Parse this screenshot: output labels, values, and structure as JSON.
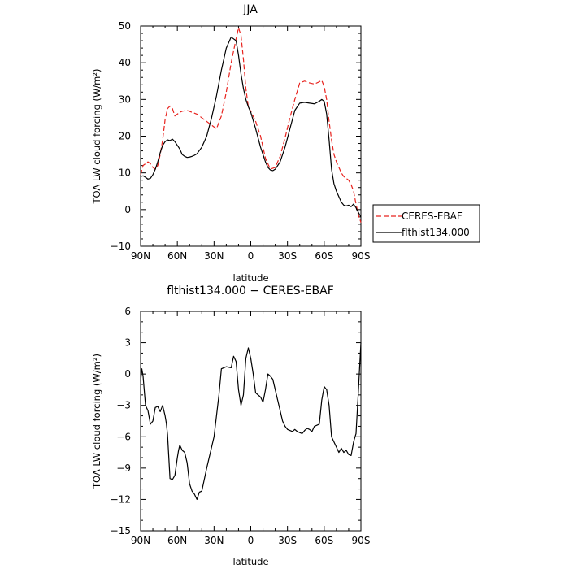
{
  "colors": {
    "ceres": "#e8231e",
    "model": "#000000",
    "axis": "#000000"
  },
  "chart_data": [
    {
      "type": "line",
      "title": "JJA",
      "xlabel": "latitude",
      "ylabel": "TOA LW cloud forcing (W/m²)",
      "xlim": [
        90,
        -90
      ],
      "ylim": [
        -10,
        50
      ],
      "grid": false,
      "legend_position": "right-outside",
      "xticks": [
        {
          "value": 90,
          "label": "90N"
        },
        {
          "value": 60,
          "label": "60N"
        },
        {
          "value": 30,
          "label": "30N"
        },
        {
          "value": 0,
          "label": "0"
        },
        {
          "value": -30,
          "label": "30S"
        },
        {
          "value": -60,
          "label": "60S"
        },
        {
          "value": -90,
          "label": "90S"
        }
      ],
      "yticks": [
        {
          "value": -10,
          "label": "−10"
        },
        {
          "value": 0,
          "label": "0"
        },
        {
          "value": 10,
          "label": "10"
        },
        {
          "value": 20,
          "label": "20"
        },
        {
          "value": 30,
          "label": "30"
        },
        {
          "value": 40,
          "label": "40"
        },
        {
          "value": 50,
          "label": "50"
        }
      ],
      "series": [
        {
          "name": "CERES-EBAF",
          "style": "dashed",
          "x": [
            90,
            88,
            86,
            84,
            82,
            80,
            78,
            76,
            74,
            72,
            70,
            68,
            66,
            64,
            62,
            60,
            58,
            56,
            52,
            48,
            44,
            40,
            36,
            32,
            28,
            24,
            20,
            16,
            12,
            10,
            8,
            6,
            4,
            2,
            0,
            -4,
            -8,
            -12,
            -16,
            -20,
            -24,
            -28,
            -32,
            -36,
            -40,
            -44,
            -48,
            -52,
            -56,
            -58,
            -60,
            -62,
            -64,
            -66,
            -68,
            -70,
            -72,
            -74,
            -76,
            -78,
            -80,
            -82,
            -84,
            -86,
            -88,
            -90
          ],
          "y": [
            9.5,
            12,
            12.5,
            13,
            12.5,
            11.5,
            11,
            12,
            15,
            19,
            24.5,
            27.5,
            28.2,
            27.5,
            25.5,
            26,
            26.5,
            26.8,
            27,
            26.5,
            26,
            25,
            24,
            23,
            22,
            25.5,
            32,
            40,
            46.5,
            49.5,
            47.5,
            41,
            33,
            28,
            26.8,
            24,
            20,
            14,
            11,
            11.5,
            14.5,
            19.5,
            25,
            30,
            34.5,
            35,
            34.5,
            34.2,
            34.8,
            35.2,
            33.5,
            30,
            24,
            19,
            15,
            13,
            11.5,
            10,
            9,
            8.5,
            8,
            6.8,
            5,
            1.5,
            -1.5,
            -3.5
          ]
        },
        {
          "name": "flthist134.000",
          "style": "solid",
          "x": [
            90,
            88,
            86,
            84,
            82,
            80,
            78,
            76,
            74,
            72,
            70,
            68,
            66,
            64,
            62,
            60,
            58,
            56,
            54,
            52,
            50,
            48,
            46,
            44,
            40,
            36,
            32,
            28,
            24,
            20,
            16,
            12,
            10,
            8,
            6,
            4,
            2,
            0,
            -4,
            -8,
            -12,
            -14,
            -16,
            -18,
            -20,
            -24,
            -28,
            -32,
            -36,
            -40,
            -44,
            -48,
            -52,
            -56,
            -58,
            -60,
            -62,
            -64,
            -66,
            -68,
            -70,
            -72,
            -74,
            -76,
            -78,
            -80,
            -82,
            -84,
            -86,
            -88,
            -90
          ],
          "y": [
            9,
            9.2,
            8.8,
            8.3,
            8.5,
            9.5,
            11,
            13,
            15.5,
            17.5,
            18.5,
            19,
            18.8,
            19.2,
            18.5,
            17.5,
            16.5,
            15,
            14.5,
            14.2,
            14.3,
            14.5,
            14.8,
            15.2,
            17,
            20,
            25,
            31,
            38,
            44,
            47,
            46,
            42,
            37,
            33,
            30,
            28,
            26.5,
            22,
            17,
            13,
            11.5,
            10.8,
            10.6,
            11,
            13,
            17,
            22,
            27,
            29,
            29.2,
            29,
            28.8,
            29.5,
            30,
            29.5,
            26,
            19,
            11,
            7,
            5,
            3.5,
            2,
            1.2,
            1,
            1.2,
            0.8,
            1.5,
            0.5,
            -0.8,
            -2
          ]
        }
      ]
    },
    {
      "type": "line",
      "title": "flthist134.000 − CERES-EBAF",
      "xlabel": "latitude",
      "ylabel": "TOA LW cloud forcing (W/m²)",
      "xlim": [
        90,
        -90
      ],
      "ylim": [
        -15,
        6
      ],
      "grid": false,
      "xticks": [
        {
          "value": 90,
          "label": "90N"
        },
        {
          "value": 60,
          "label": "60N"
        },
        {
          "value": 30,
          "label": "30N"
        },
        {
          "value": 0,
          "label": "0"
        },
        {
          "value": -30,
          "label": "30S"
        },
        {
          "value": -60,
          "label": "60S"
        },
        {
          "value": -90,
          "label": "90S"
        }
      ],
      "yticks": [
        {
          "value": -15,
          "label": "−15"
        },
        {
          "value": -12,
          "label": "−12"
        },
        {
          "value": -9,
          "label": "−9"
        },
        {
          "value": -6,
          "label": "−6"
        },
        {
          "value": -3,
          "label": "−3"
        },
        {
          "value": 0,
          "label": "0"
        },
        {
          "value": 3,
          "label": "3"
        },
        {
          "value": 6,
          "label": "6"
        }
      ],
      "series": [
        {
          "name": "",
          "style": "solid",
          "x": [
            90,
            89,
            88,
            86,
            84,
            82,
            80,
            78,
            76,
            74,
            72,
            70,
            69,
            68,
            66,
            64,
            62,
            60,
            59,
            58,
            56,
            54,
            52,
            50,
            48,
            46,
            44,
            42,
            40,
            36,
            32,
            30,
            28,
            26,
            24,
            20,
            16,
            14,
            12,
            10,
            8,
            6,
            4,
            2,
            0,
            -2,
            -4,
            -6,
            -8,
            -10,
            -12,
            -14,
            -16,
            -18,
            -20,
            -22,
            -24,
            -26,
            -28,
            -30,
            -32,
            -34,
            -36,
            -38,
            -40,
            -42,
            -44,
            -46,
            -48,
            -50,
            -52,
            -54,
            -56,
            -58,
            -60,
            -62,
            -64,
            -66,
            -68,
            -70,
            -72,
            -74,
            -76,
            -78,
            -80,
            -82,
            -84,
            -86,
            -88,
            -90
          ],
          "y": [
            -0.7,
            0.5,
            -0.2,
            -3,
            -3.5,
            -4.8,
            -4.5,
            -3.2,
            -3.1,
            -3.6,
            -3,
            -4,
            -4.7,
            -5.8,
            -10,
            -10.1,
            -9.7,
            -8,
            -7.3,
            -6.8,
            -7.3,
            -7.5,
            -8.5,
            -10.5,
            -11.2,
            -11.5,
            -12,
            -11.3,
            -11.2,
            -9,
            -7,
            -6,
            -4,
            -2,
            0.5,
            0.7,
            0.6,
            1.7,
            1.2,
            -1.5,
            -3,
            -2,
            1.5,
            2.5,
            1.5,
            0,
            -1.8,
            -2,
            -2.2,
            -2.7,
            -1.5,
            0,
            -0.2,
            -0.5,
            -1.5,
            -2.5,
            -3.5,
            -4.5,
            -5,
            -5.3,
            -5.4,
            -5.5,
            -5.3,
            -5.5,
            -5.6,
            -5.7,
            -5.4,
            -5.2,
            -5.3,
            -5.5,
            -5,
            -4.9,
            -4.8,
            -2.5,
            -1.2,
            -1.5,
            -3,
            -6,
            -6.5,
            -7,
            -7.5,
            -7.1,
            -7.5,
            -7.3,
            -7.7,
            -7.8,
            -6.5,
            -5.7,
            -1.5,
            3
          ]
        }
      ]
    }
  ]
}
